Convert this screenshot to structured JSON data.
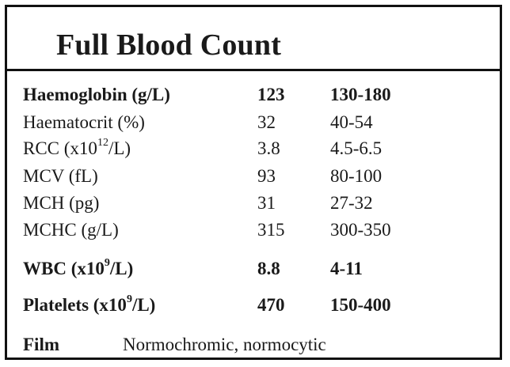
{
  "title": "Full Blood Count",
  "rows": [
    {
      "label": "Haemoglobin (g/L)",
      "value": "123",
      "range": "130-180",
      "bold": true
    },
    {
      "label": "Haematocrit (%)",
      "value": "32",
      "range": "40-54",
      "bold": false
    },
    {
      "label_pre": "RCC  (x10",
      "label_sup": "12",
      "label_post": "/L)",
      "value": "3.8",
      "range": "4.5-6.5",
      "bold": false
    },
    {
      "label": "MCV  (fL)",
      "value": "93",
      "range": "80-100",
      "bold": false
    },
    {
      "label": "MCH  (pg)",
      "value": "31",
      "range": "27-32",
      "bold": false
    },
    {
      "label": "MCHC (g/L)",
      "value": "315",
      "range": "300-350",
      "bold": false
    },
    {
      "label_pre": "WBC    (x10",
      "label_sup": "9",
      "label_post": "/L)",
      "value": "8.8",
      "range": "4-11",
      "bold": true
    },
    {
      "label_pre": "Platelets (x10",
      "label_sup": "9",
      "label_post": "/L)",
      "value": "470",
      "range": "150-400",
      "bold": true
    }
  ],
  "film": {
    "label": "Film",
    "value": "Normochromic, normocytic"
  }
}
